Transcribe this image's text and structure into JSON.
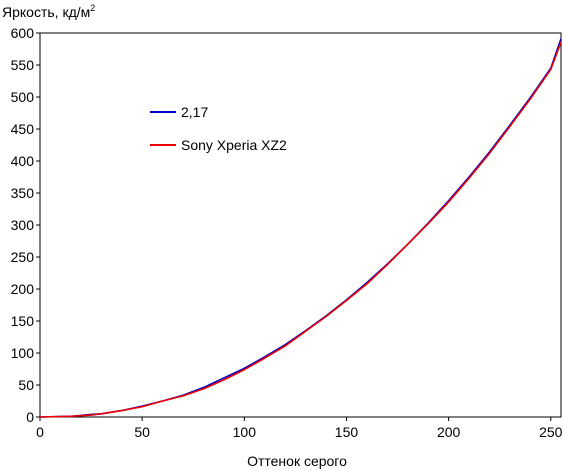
{
  "chart_data": {
    "type": "line",
    "ylabel_main": "Яркость, кд/м",
    "ylabel_sup": "2",
    "xlabel": "Оттенок серого",
    "xlim": [
      0,
      255
    ],
    "ylim": [
      0,
      600
    ],
    "x_ticks": [
      "0",
      "50",
      "100",
      "150",
      "200",
      "250"
    ],
    "y_ticks": [
      "0",
      "50",
      "100",
      "150",
      "200",
      "250",
      "300",
      "350",
      "400",
      "450",
      "500",
      "550",
      "600"
    ],
    "grid": false,
    "legend_position": "upper-left-inside",
    "series": [
      {
        "name": "2,17",
        "color": "#0000cc",
        "x": [
          0,
          15,
          25,
          30,
          40,
          50,
          60,
          70,
          80,
          90,
          100,
          110,
          120,
          130,
          140,
          150,
          160,
          170,
          180,
          190,
          200,
          210,
          220,
          230,
          240,
          250,
          255
        ],
        "y": [
          0,
          1,
          4,
          5,
          10,
          17,
          25,
          34,
          46,
          61,
          76,
          94,
          113,
          135,
          158,
          183,
          210,
          239,
          270,
          303,
          338,
          375,
          414,
          456,
          499,
          545,
          591
        ]
      },
      {
        "name": "Sony Xperia XZ2",
        "color": "#ee0000",
        "x": [
          0,
          15,
          25,
          30,
          40,
          50,
          60,
          70,
          80,
          90,
          100,
          110,
          120,
          130,
          140,
          150,
          160,
          170,
          180,
          190,
          200,
          210,
          220,
          230,
          240,
          250,
          255
        ],
        "y": [
          0,
          1,
          3,
          5,
          10,
          16,
          25,
          33,
          44,
          58,
          74,
          92,
          111,
          134,
          157,
          182,
          208,
          238,
          270,
          302,
          336,
          373,
          412,
          454,
          497,
          543,
          586
        ]
      }
    ]
  }
}
